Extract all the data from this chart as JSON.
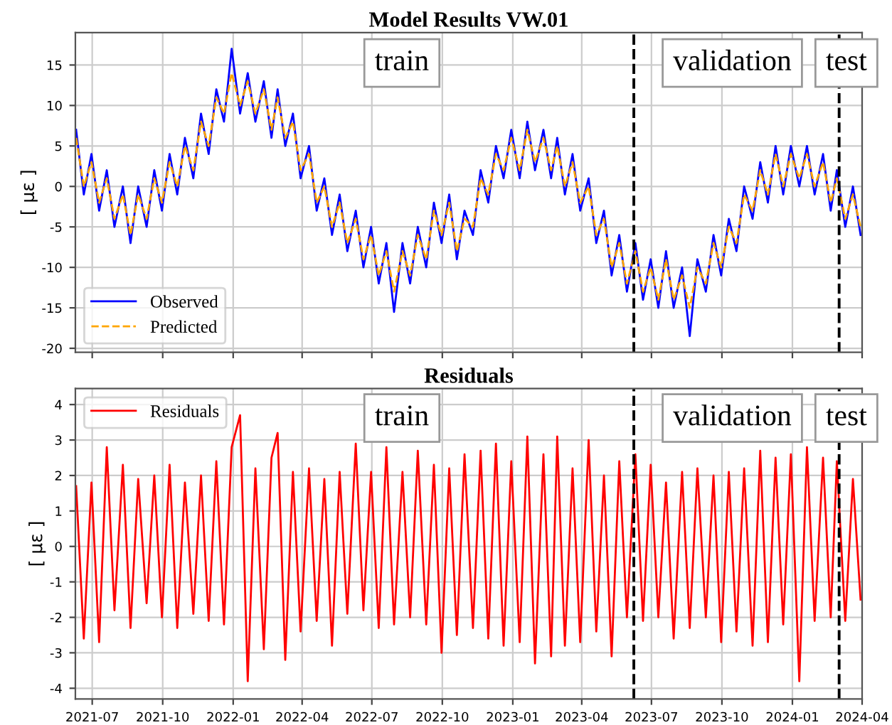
{
  "chart_data": [
    {
      "type": "line",
      "title": "Model Results VW.01",
      "ylabel": "[ με ]",
      "x": [
        "2021-06-10",
        "2021-06-20",
        "2021-06-30",
        "2021-07-10",
        "2021-07-20",
        "2021-07-30",
        "2021-08-10",
        "2021-08-20",
        "2021-08-30",
        "2021-09-10",
        "2021-09-20",
        "2021-09-30",
        "2021-10-10",
        "2021-10-20",
        "2021-10-30",
        "2021-11-10",
        "2021-11-20",
        "2021-11-30",
        "2021-12-10",
        "2021-12-20",
        "2021-12-30",
        "2022-01-10",
        "2022-01-20",
        "2022-01-30",
        "2022-02-10",
        "2022-02-20",
        "2022-02-28",
        "2022-03-10",
        "2022-03-20",
        "2022-03-30",
        "2022-04-10",
        "2022-04-20",
        "2022-04-30",
        "2022-05-10",
        "2022-05-20",
        "2022-05-30",
        "2022-06-10",
        "2022-06-20",
        "2022-06-30",
        "2022-07-10",
        "2022-07-20",
        "2022-07-30",
        "2022-08-10",
        "2022-08-20",
        "2022-08-30",
        "2022-09-10",
        "2022-09-20",
        "2022-09-30",
        "2022-10-10",
        "2022-10-20",
        "2022-10-30",
        "2022-11-10",
        "2022-11-20",
        "2022-11-30",
        "2022-12-10",
        "2022-12-20",
        "2022-12-30",
        "2023-01-10",
        "2023-01-20",
        "2023-01-30",
        "2023-02-10",
        "2023-02-20",
        "2023-02-28",
        "2023-03-10",
        "2023-03-20",
        "2023-03-30",
        "2023-04-10",
        "2023-04-20",
        "2023-04-30",
        "2023-05-10",
        "2023-05-20",
        "2023-05-30",
        "2023-06-10",
        "2023-06-20",
        "2023-06-30",
        "2023-07-10",
        "2023-07-20",
        "2023-07-30",
        "2023-08-10",
        "2023-08-20",
        "2023-08-30",
        "2023-09-10",
        "2023-09-20",
        "2023-09-30",
        "2023-10-10",
        "2023-10-20",
        "2023-10-30",
        "2023-11-10",
        "2023-11-20",
        "2023-11-30",
        "2023-12-10",
        "2023-12-20",
        "2023-12-30",
        "2024-01-10",
        "2024-01-20",
        "2024-01-30",
        "2024-02-10",
        "2024-02-20",
        "2024-02-28",
        "2024-03-10",
        "2024-03-20",
        "2024-03-30"
      ],
      "series": [
        {
          "name": "Observed",
          "color": "#0000ff",
          "line_style": "solid",
          "values": [
            7,
            -1,
            4,
            -3,
            2,
            -5,
            0,
            -7,
            0,
            -5,
            2,
            -3,
            4,
            -1,
            6,
            1,
            9,
            4,
            12,
            8,
            17,
            9,
            14,
            8,
            13,
            6,
            12,
            5,
            9,
            1,
            5,
            -3,
            1,
            -6,
            -1,
            -8,
            -3,
            -10,
            -5,
            -12,
            -7,
            -15.5,
            -7,
            -12,
            -5,
            -10,
            -2,
            -7,
            -1,
            -9,
            -3,
            -6,
            2,
            -2,
            5,
            1,
            7,
            1,
            8,
            2,
            7,
            1,
            6,
            -1,
            4,
            -3,
            1,
            -7,
            -3,
            -11,
            -6,
            -13,
            -7,
            -14,
            -9,
            -15,
            -8,
            -15,
            -10,
            -18.5,
            -9,
            -13,
            -6,
            -11,
            -4,
            -8,
            0,
            -4,
            3,
            -2,
            5,
            -1,
            5,
            0,
            5,
            -1,
            4,
            -3,
            2,
            -5,
            0,
            -6
          ]
        },
        {
          "name": "Predicted",
          "color": "#ffa500",
          "line_style": "dashed",
          "values": [
            6,
            0,
            3,
            -2,
            1,
            -4,
            -1,
            -6,
            -1,
            -4,
            1,
            -2,
            3,
            0,
            5,
            2,
            8,
            5,
            11,
            9,
            14,
            10,
            13,
            9,
            12,
            7,
            11,
            6,
            8,
            2,
            4,
            -2,
            0,
            -5,
            -2,
            -7,
            -4,
            -9,
            -6,
            -11,
            -8,
            -13,
            -8,
            -11,
            -6,
            -9,
            -3,
            -6,
            -2,
            -8,
            -4,
            -5,
            1,
            -1,
            4,
            2,
            6,
            2,
            7,
            3,
            6,
            2,
            5,
            0,
            3,
            -2,
            0,
            -6,
            -4,
            -10,
            -7,
            -12,
            -8,
            -13,
            -10,
            -14,
            -9,
            -14,
            -11,
            -15,
            -10,
            -12,
            -7,
            -10,
            -5,
            -7,
            -1,
            -3,
            2,
            -1,
            4,
            0,
            4,
            1,
            4,
            0,
            3,
            -2,
            1,
            -4,
            -1,
            -5
          ]
        }
      ],
      "xlim": [
        "2021-06-09",
        "2024-04-01"
      ],
      "ylim": [
        -20.5,
        19
      ],
      "yticks": [
        -20,
        -15,
        -10,
        -5,
        0,
        5,
        10,
        15
      ],
      "xticks": [
        {
          "value": "2021-07-01",
          "label": null
        },
        {
          "value": "2021-10-01",
          "label": null
        },
        {
          "value": "2022-01-01",
          "label": null
        },
        {
          "value": "2022-04-01",
          "label": null
        },
        {
          "value": "2022-07-01",
          "label": null
        },
        {
          "value": "2022-10-01",
          "label": null
        },
        {
          "value": "2023-01-01",
          "label": null
        },
        {
          "value": "2023-04-01",
          "label": null
        },
        {
          "value": "2023-07-01",
          "label": null
        },
        {
          "value": "2023-10-01",
          "label": null
        },
        {
          "value": "2024-01-01",
          "label": null
        },
        {
          "value": "2024-04-01",
          "label": null
        }
      ],
      "tick_labels": "y",
      "grid": true,
      "legend": "bottom left",
      "ref_lines": [
        {
          "axis": "x",
          "value": "2023-06-08",
          "color": "#000000",
          "line_style": "dashed"
        },
        {
          "axis": "x",
          "value": "2024-03-02",
          "color": "#000000",
          "line_style": "dashed"
        }
      ],
      "annotations": [
        "train",
        "validation",
        "test"
      ]
    },
    {
      "type": "line",
      "title": "Residuals",
      "ylabel": "[ με ]",
      "x": [
        "2021-06-10",
        "2021-06-20",
        "2021-06-30",
        "2021-07-10",
        "2021-07-20",
        "2021-07-30",
        "2021-08-10",
        "2021-08-20",
        "2021-08-30",
        "2021-09-10",
        "2021-09-20",
        "2021-09-30",
        "2021-10-10",
        "2021-10-20",
        "2021-10-30",
        "2021-11-10",
        "2021-11-20",
        "2021-11-30",
        "2021-12-10",
        "2021-12-20",
        "2021-12-30",
        "2022-01-10",
        "2022-01-20",
        "2022-01-30",
        "2022-02-10",
        "2022-02-20",
        "2022-02-28",
        "2022-03-10",
        "2022-03-20",
        "2022-03-30",
        "2022-04-10",
        "2022-04-20",
        "2022-04-30",
        "2022-05-10",
        "2022-05-20",
        "2022-05-30",
        "2022-06-10",
        "2022-06-20",
        "2022-06-30",
        "2022-07-10",
        "2022-07-20",
        "2022-07-30",
        "2022-08-10",
        "2022-08-20",
        "2022-08-30",
        "2022-09-10",
        "2022-09-20",
        "2022-09-30",
        "2022-10-10",
        "2022-10-20",
        "2022-10-30",
        "2022-11-10",
        "2022-11-20",
        "2022-11-30",
        "2022-12-10",
        "2022-12-20",
        "2022-12-30",
        "2023-01-10",
        "2023-01-20",
        "2023-01-30",
        "2023-02-10",
        "2023-02-20",
        "2023-02-28",
        "2023-03-10",
        "2023-03-20",
        "2023-03-30",
        "2023-04-10",
        "2023-04-20",
        "2023-04-30",
        "2023-05-10",
        "2023-05-20",
        "2023-05-30",
        "2023-06-10",
        "2023-06-20",
        "2023-06-30",
        "2023-07-10",
        "2023-07-20",
        "2023-07-30",
        "2023-08-10",
        "2023-08-20",
        "2023-08-30",
        "2023-09-10",
        "2023-09-20",
        "2023-09-30",
        "2023-10-10",
        "2023-10-20",
        "2023-10-30",
        "2023-11-10",
        "2023-11-20",
        "2023-11-30",
        "2023-12-10",
        "2023-12-20",
        "2023-12-30",
        "2024-01-10",
        "2024-01-20",
        "2024-01-30",
        "2024-02-10",
        "2024-02-20",
        "2024-02-28",
        "2024-03-10",
        "2024-03-20",
        "2024-03-30"
      ],
      "series": [
        {
          "name": "Residuals",
          "color": "#ff0000",
          "line_style": "solid",
          "values": [
            1.7,
            -2.6,
            1.8,
            -2.7,
            2.8,
            -1.8,
            2.3,
            -2.3,
            1.9,
            -1.6,
            2.0,
            -2.0,
            2.3,
            -2.3,
            1.8,
            -1.9,
            2.0,
            -2.1,
            2.4,
            -2.2,
            2.8,
            3.7,
            -3.8,
            2.2,
            -2.9,
            2.5,
            3.2,
            -3.2,
            2.1,
            -2.4,
            2.2,
            -2.1,
            1.9,
            -2.8,
            2.1,
            -1.9,
            2.9,
            -1.8,
            2.1,
            -2.3,
            2.8,
            -2.2,
            2.1,
            -2.0,
            2.7,
            -2.2,
            2.3,
            -3.0,
            2.2,
            -2.5,
            2.6,
            -2.3,
            2.7,
            -2.6,
            2.9,
            -2.8,
            2.4,
            -2.7,
            3.1,
            -3.3,
            2.6,
            -3.1,
            3.1,
            -2.8,
            2.2,
            -2.7,
            3.0,
            -2.4,
            2.0,
            -3.1,
            2.4,
            -2.0,
            2.6,
            -2.1,
            2.3,
            -2.0,
            1.8,
            -2.6,
            2.1,
            -2.3,
            2.2,
            -2.0,
            2.0,
            -2.7,
            2.1,
            -2.4,
            2.2,
            -2.8,
            2.7,
            -2.7,
            2.5,
            -2.2,
            2.6,
            -3.8,
            2.8,
            -2.1,
            2.5,
            -2.0,
            2.4,
            -2.1,
            1.9,
            -1.5
          ]
        }
      ],
      "xlim": [
        "2021-06-09",
        "2024-04-01"
      ],
      "ylim": [
        -4.3,
        4.45
      ],
      "yticks": [
        -4,
        -3,
        -2,
        -1,
        0,
        1,
        2,
        3,
        4
      ],
      "xticks": [
        {
          "value": "2021-07-01",
          "label": "2021-07"
        },
        {
          "value": "2021-10-01",
          "label": "2021-10"
        },
        {
          "value": "2022-01-01",
          "label": "2022-01"
        },
        {
          "value": "2022-04-01",
          "label": "2022-04"
        },
        {
          "value": "2022-07-01",
          "label": "2022-07"
        },
        {
          "value": "2022-10-01",
          "label": "2022-10"
        },
        {
          "value": "2023-01-01",
          "label": "2023-01"
        },
        {
          "value": "2023-04-01",
          "label": "2023-04"
        },
        {
          "value": "2023-07-01",
          "label": "2023-07"
        },
        {
          "value": "2023-10-01",
          "label": "2023-10"
        },
        {
          "value": "2024-01-01",
          "label": "2024-01"
        },
        {
          "value": "2024-04-01",
          "label": "2024-04"
        }
      ],
      "grid": true,
      "legend": "top left",
      "ref_lines": [
        {
          "axis": "x",
          "value": "2023-06-08",
          "color": "#000000",
          "line_style": "dashed"
        },
        {
          "axis": "x",
          "value": "2024-03-02",
          "color": "#000000",
          "line_style": "dashed"
        }
      ],
      "annotations": [
        "train",
        "validation",
        "test"
      ]
    }
  ]
}
